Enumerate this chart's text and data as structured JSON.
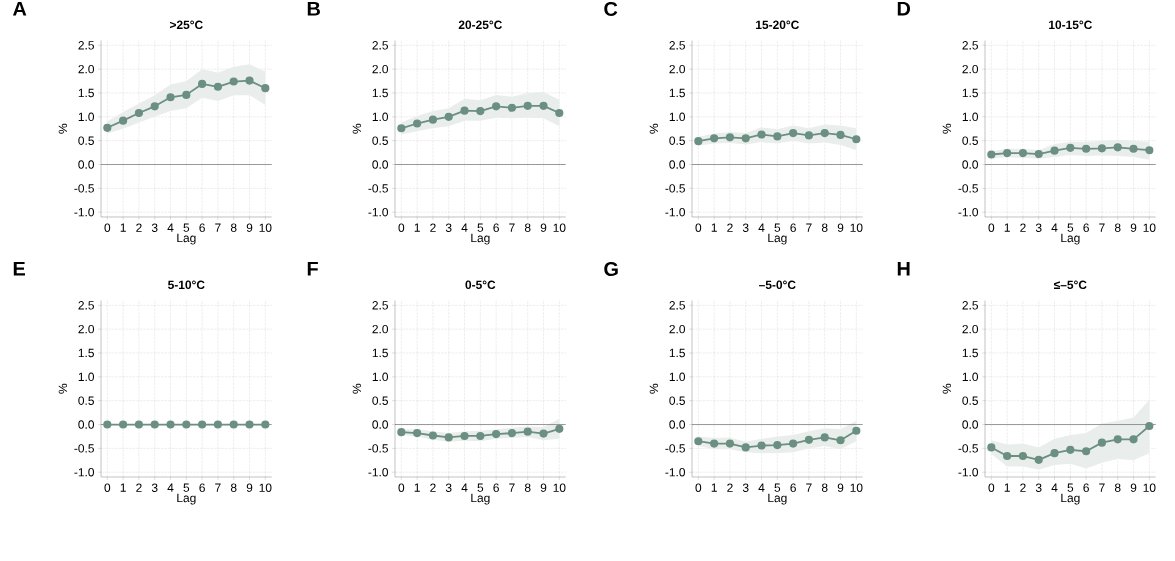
{
  "chart_data": [
    {
      "type": "line",
      "title": ">25°C",
      "xlabel": "Lag",
      "ylabel": "%",
      "annotations": [
        "A"
      ],
      "x": [
        0,
        1,
        2,
        3,
        4,
        5,
        6,
        7,
        8,
        9,
        10
      ],
      "xlim": [
        -0.4,
        10.4
      ],
      "xticks": [
        0,
        1,
        2,
        3,
        4,
        5,
        6,
        7,
        8,
        9,
        10
      ],
      "ylim": [
        -1.1,
        2.6
      ],
      "yticks": [
        {
          "value": -1,
          "label": "-1.0"
        },
        -0.5,
        {
          "value": 0,
          "label": "0.0"
        },
        0.5,
        {
          "value": 1,
          "label": "1.0"
        },
        1.5,
        {
          "value": 2,
          "label": "2.0"
        },
        2.5
      ],
      "grid": true,
      "marker": "circle",
      "ref_lines": [
        {
          "axis": "y",
          "value": 0
        }
      ],
      "series": [
        {
          "color": "#6b8f80",
          "values": [
            0.77,
            0.92,
            1.08,
            1.22,
            1.41,
            1.46,
            1.69,
            1.63,
            1.74,
            1.76,
            1.6
          ],
          "lower": [
            0.65,
            0.75,
            0.88,
            1.0,
            1.12,
            1.18,
            1.4,
            1.33,
            1.45,
            1.45,
            1.25
          ],
          "upper": [
            0.9,
            1.1,
            1.28,
            1.45,
            1.68,
            1.75,
            2.0,
            1.93,
            2.05,
            2.1,
            1.95
          ]
        }
      ]
    },
    {
      "type": "line",
      "title": "20-25°C",
      "xlabel": "Lag",
      "ylabel": "%",
      "annotations": [
        "B"
      ],
      "x": [
        0,
        1,
        2,
        3,
        4,
        5,
        6,
        7,
        8,
        9,
        10
      ],
      "xlim": [
        -0.4,
        10.4
      ],
      "xticks": [
        0,
        1,
        2,
        3,
        4,
        5,
        6,
        7,
        8,
        9,
        10
      ],
      "ylim": [
        -1.1,
        2.6
      ],
      "yticks": [
        {
          "value": -1,
          "label": "-1.0"
        },
        -0.5,
        {
          "value": 0,
          "label": "0.0"
        },
        0.5,
        {
          "value": 1,
          "label": "1.0"
        },
        1.5,
        {
          "value": 2,
          "label": "2.0"
        },
        2.5
      ],
      "grid": true,
      "marker": "circle",
      "ref_lines": [
        {
          "axis": "y",
          "value": 0
        }
      ],
      "series": [
        {
          "color": "#6b8f80",
          "values": [
            0.76,
            0.86,
            0.94,
            1.0,
            1.13,
            1.12,
            1.22,
            1.19,
            1.23,
            1.23,
            1.08
          ],
          "lower": [
            0.63,
            0.7,
            0.76,
            0.8,
            0.92,
            0.92,
            0.98,
            0.97,
            0.98,
            0.97,
            0.8
          ],
          "upper": [
            0.88,
            1.02,
            1.12,
            1.18,
            1.38,
            1.35,
            1.46,
            1.42,
            1.5,
            1.52,
            1.36
          ]
        }
      ]
    },
    {
      "type": "line",
      "title": "15-20°C",
      "xlabel": "Lag",
      "ylabel": "%",
      "annotations": [
        "C"
      ],
      "x": [
        0,
        1,
        2,
        3,
        4,
        5,
        6,
        7,
        8,
        9,
        10
      ],
      "xlim": [
        -0.4,
        10.4
      ],
      "xticks": [
        0,
        1,
        2,
        3,
        4,
        5,
        6,
        7,
        8,
        9,
        10
      ],
      "ylim": [
        -1.1,
        2.6
      ],
      "yticks": [
        {
          "value": -1,
          "label": "-1.0"
        },
        -0.5,
        {
          "value": 0,
          "label": "0.0"
        },
        0.5,
        {
          "value": 1,
          "label": "1.0"
        },
        1.5,
        {
          "value": 2,
          "label": "2.0"
        },
        2.5
      ],
      "grid": true,
      "marker": "circle",
      "ref_lines": [
        {
          "axis": "y",
          "value": 0
        }
      ],
      "series": [
        {
          "color": "#6b8f80",
          "values": [
            0.49,
            0.55,
            0.57,
            0.55,
            0.63,
            0.59,
            0.66,
            0.61,
            0.66,
            0.62,
            0.53
          ],
          "lower": [
            0.4,
            0.44,
            0.45,
            0.42,
            0.47,
            0.44,
            0.5,
            0.44,
            0.46,
            0.41,
            0.3
          ],
          "upper": [
            0.58,
            0.65,
            0.68,
            0.66,
            0.78,
            0.74,
            0.82,
            0.76,
            0.84,
            0.82,
            0.76
          ]
        }
      ]
    },
    {
      "type": "line",
      "title": "10-15°C",
      "xlabel": "Lag",
      "ylabel": "%",
      "annotations": [
        "D"
      ],
      "x": [
        0,
        1,
        2,
        3,
        4,
        5,
        6,
        7,
        8,
        9,
        10
      ],
      "xlim": [
        -0.4,
        10.4
      ],
      "xticks": [
        0,
        1,
        2,
        3,
        4,
        5,
        6,
        7,
        8,
        9,
        10
      ],
      "ylim": [
        -1.1,
        2.6
      ],
      "yticks": [
        {
          "value": -1,
          "label": "-1.0"
        },
        -0.5,
        {
          "value": 0,
          "label": "0.0"
        },
        0.5,
        {
          "value": 1,
          "label": "1.0"
        },
        1.5,
        {
          "value": 2,
          "label": "2.0"
        },
        2.5
      ],
      "grid": true,
      "marker": "circle",
      "ref_lines": [
        {
          "axis": "y",
          "value": 0
        }
      ],
      "series": [
        {
          "color": "#6b8f80",
          "values": [
            0.21,
            0.24,
            0.24,
            0.22,
            0.29,
            0.35,
            0.33,
            0.34,
            0.36,
            0.33,
            0.3
          ],
          "lower": [
            0.13,
            0.15,
            0.14,
            0.12,
            0.16,
            0.2,
            0.18,
            0.19,
            0.18,
            0.16,
            0.1
          ],
          "upper": [
            0.28,
            0.33,
            0.33,
            0.3,
            0.43,
            0.48,
            0.48,
            0.5,
            0.52,
            0.5,
            0.48
          ]
        }
      ]
    },
    {
      "type": "line",
      "title": "5-10°C",
      "xlabel": "Lag",
      "ylabel": "%",
      "annotations": [
        "E"
      ],
      "x": [
        0,
        1,
        2,
        3,
        4,
        5,
        6,
        7,
        8,
        9,
        10
      ],
      "xlim": [
        -0.4,
        10.4
      ],
      "xticks": [
        0,
        1,
        2,
        3,
        4,
        5,
        6,
        7,
        8,
        9,
        10
      ],
      "ylim": [
        -1.1,
        2.6
      ],
      "yticks": [
        {
          "value": -1,
          "label": "-1.0"
        },
        -0.5,
        {
          "value": 0,
          "label": "0.0"
        },
        0.5,
        {
          "value": 1,
          "label": "1.0"
        },
        1.5,
        {
          "value": 2,
          "label": "2.0"
        },
        2.5
      ],
      "grid": true,
      "marker": "circle",
      "ref_lines": [
        {
          "axis": "y",
          "value": 0
        }
      ],
      "series": [
        {
          "color": "#6b8f80",
          "values": [
            0,
            0,
            0,
            0,
            0,
            0,
            0,
            0,
            0,
            0,
            0
          ]
        }
      ]
    },
    {
      "type": "line",
      "title": "0-5°C",
      "xlabel": "Lag",
      "ylabel": "%",
      "annotations": [
        "F"
      ],
      "x": [
        0,
        1,
        2,
        3,
        4,
        5,
        6,
        7,
        8,
        9,
        10
      ],
      "xlim": [
        -0.4,
        10.4
      ],
      "xticks": [
        0,
        1,
        2,
        3,
        4,
        5,
        6,
        7,
        8,
        9,
        10
      ],
      "ylim": [
        -1.1,
        2.6
      ],
      "yticks": [
        {
          "value": -1,
          "label": "-1.0"
        },
        -0.5,
        {
          "value": 0,
          "label": "0.0"
        },
        0.5,
        {
          "value": 1,
          "label": "1.0"
        },
        1.5,
        {
          "value": 2,
          "label": "2.0"
        },
        2.5
      ],
      "grid": true,
      "marker": "circle",
      "ref_lines": [
        {
          "axis": "y",
          "value": 0
        }
      ],
      "series": [
        {
          "color": "#6b8f80",
          "values": [
            -0.16,
            -0.18,
            -0.23,
            -0.27,
            -0.24,
            -0.24,
            -0.2,
            -0.18,
            -0.15,
            -0.19,
            -0.09
          ],
          "lower": [
            -0.22,
            -0.25,
            -0.32,
            -0.36,
            -0.34,
            -0.35,
            -0.3,
            -0.28,
            -0.26,
            -0.33,
            -0.3
          ],
          "upper": [
            -0.1,
            -0.1,
            -0.14,
            -0.18,
            -0.14,
            -0.13,
            -0.1,
            -0.07,
            -0.04,
            -0.05,
            0.12
          ]
        }
      ]
    },
    {
      "type": "line",
      "title": "–5-0°C",
      "xlabel": "Lag",
      "ylabel": "%",
      "annotations": [
        "G"
      ],
      "x": [
        0,
        1,
        2,
        3,
        4,
        5,
        6,
        7,
        8,
        9,
        10
      ],
      "xlim": [
        -0.4,
        10.4
      ],
      "xticks": [
        0,
        1,
        2,
        3,
        4,
        5,
        6,
        7,
        8,
        9,
        10
      ],
      "ylim": [
        -1.1,
        2.6
      ],
      "yticks": [
        {
          "value": -1,
          "label": "-1.0"
        },
        -0.5,
        {
          "value": 0,
          "label": "0.0"
        },
        0.5,
        {
          "value": 1,
          "label": "1.0"
        },
        1.5,
        {
          "value": 2,
          "label": "2.0"
        },
        2.5
      ],
      "grid": true,
      "marker": "circle",
      "ref_lines": [
        {
          "axis": "y",
          "value": 0
        }
      ],
      "series": [
        {
          "color": "#6b8f80",
          "values": [
            -0.35,
            -0.4,
            -0.4,
            -0.48,
            -0.44,
            -0.43,
            -0.4,
            -0.32,
            -0.27,
            -0.33,
            -0.13
          ],
          "lower": [
            -0.45,
            -0.52,
            -0.52,
            -0.58,
            -0.6,
            -0.6,
            -0.58,
            -0.5,
            -0.45,
            -0.52,
            -0.35
          ],
          "upper": [
            -0.25,
            -0.28,
            -0.27,
            -0.36,
            -0.3,
            -0.25,
            -0.22,
            -0.14,
            -0.08,
            -0.1,
            0.08
          ]
        }
      ]
    },
    {
      "type": "line",
      "title": "≤–5°C",
      "xlabel": "Lag",
      "ylabel": "%",
      "annotations": [
        "H"
      ],
      "x": [
        0,
        1,
        2,
        3,
        4,
        5,
        6,
        7,
        8,
        9,
        10
      ],
      "xlim": [
        -0.4,
        10.4
      ],
      "xticks": [
        0,
        1,
        2,
        3,
        4,
        5,
        6,
        7,
        8,
        9,
        10
      ],
      "ylim": [
        -1.1,
        2.6
      ],
      "yticks": [
        {
          "value": -1,
          "label": "-1.0"
        },
        -0.5,
        {
          "value": 0,
          "label": "0.0"
        },
        0.5,
        {
          "value": 1,
          "label": "1.0"
        },
        1.5,
        {
          "value": 2,
          "label": "2.0"
        },
        2.5
      ],
      "grid": true,
      "marker": "circle",
      "ref_lines": [
        {
          "axis": "y",
          "value": 0
        }
      ],
      "series": [
        {
          "color": "#6b8f80",
          "values": [
            -0.48,
            -0.66,
            -0.66,
            -0.74,
            -0.6,
            -0.53,
            -0.56,
            -0.38,
            -0.31,
            -0.31,
            -0.03
          ],
          "lower": [
            -0.62,
            -0.88,
            -0.88,
            -0.95,
            -0.85,
            -0.82,
            -0.92,
            -0.8,
            -0.72,
            -0.75,
            -0.6
          ],
          "upper": [
            -0.33,
            -0.42,
            -0.4,
            -0.48,
            -0.3,
            -0.22,
            -0.18,
            0.02,
            0.08,
            0.15,
            0.52
          ]
        }
      ]
    }
  ]
}
